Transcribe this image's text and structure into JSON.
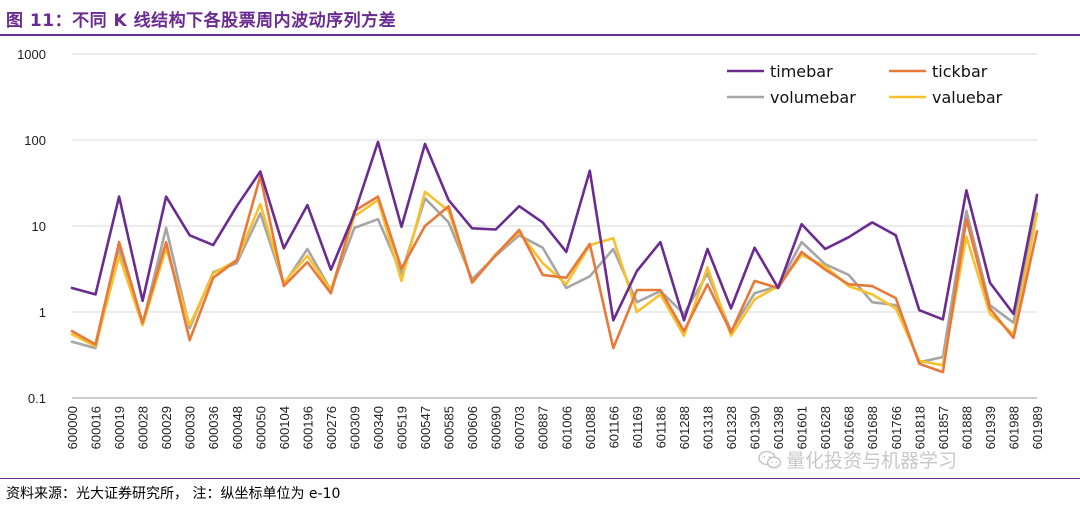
{
  "figure": {
    "title": "图 11：不同 K 线结构下各股票周内波动序列方差",
    "source": "资料来源：光大证券研究所，  注：纵坐标单位为 e-10",
    "watermark": "量化投资与机器学习"
  },
  "chart_data": {
    "type": "line",
    "title": "不同 K 线结构下各股票周内波动序列方差",
    "xlabel": "",
    "ylabel": "",
    "yscale": "log",
    "ylim": [
      0.1,
      1000
    ],
    "yticks": [
      0.1,
      1,
      10,
      100,
      1000
    ],
    "ytick_labels": [
      "0.1",
      "1",
      "10",
      "100",
      "1000"
    ],
    "legend_position": "top-right",
    "categories": [
      "600000",
      "600016",
      "600019",
      "600028",
      "600029",
      "600030",
      "600036",
      "600048",
      "600050",
      "600104",
      "600196",
      "600276",
      "600309",
      "600340",
      "600519",
      "600547",
      "600585",
      "600606",
      "600690",
      "600703",
      "600887",
      "601006",
      "601088",
      "601166",
      "601169",
      "601186",
      "601288",
      "601318",
      "601328",
      "601390",
      "601398",
      "601601",
      "601628",
      "601668",
      "601688",
      "601766",
      "601818",
      "601857",
      "601888",
      "601939",
      "601988",
      "601989"
    ],
    "series": [
      {
        "name": "timebar",
        "color": "#6B2C91",
        "values": [
          1.9,
          1.6,
          22,
          1.35,
          22,
          7.8,
          6,
          17,
          43,
          5.5,
          17.5,
          3.1,
          14,
          95,
          9.8,
          90,
          20,
          9.4,
          9.1,
          17,
          11,
          5,
          44,
          0.8,
          3,
          6.5,
          0.8,
          5.4,
          1.1,
          5.6,
          1.9,
          10.5,
          5.4,
          7.4,
          11,
          7.8,
          1.05,
          0.82,
          26,
          2.2,
          0.95,
          23
        ]
      },
      {
        "name": "tickbar",
        "color": "#E8793A",
        "values": [
          0.6,
          0.42,
          6.5,
          0.75,
          6.5,
          0.47,
          2.5,
          4,
          38,
          2,
          3.8,
          1.65,
          15,
          22,
          3.2,
          10,
          17,
          2.2,
          4.6,
          9,
          2.7,
          2.5,
          6.2,
          0.38,
          1.8,
          1.8,
          0.6,
          2.1,
          0.58,
          2.3,
          1.9,
          5,
          3.1,
          2.1,
          2,
          1.45,
          0.25,
          0.2,
          12,
          1.1,
          0.5,
          8.7
        ]
      },
      {
        "name": "volumebar",
        "color": "#A6A6A6",
        "values": [
          0.45,
          0.38,
          5.5,
          0.72,
          9.5,
          0.65,
          2.9,
          3.7,
          14,
          2.1,
          5.4,
          1.8,
          9.5,
          12,
          2.8,
          21,
          11,
          2.4,
          4.5,
          7.8,
          5.6,
          1.9,
          2.6,
          5.4,
          1.3,
          1.75,
          0.95,
          2.8,
          0.6,
          1.65,
          2,
          6.5,
          3.6,
          2.7,
          1.3,
          1.2,
          0.26,
          0.3,
          15,
          1.2,
          0.75,
          20
        ]
      },
      {
        "name": "valuebar",
        "color": "#F7C12E",
        "values": [
          0.55,
          0.4,
          4.5,
          0.7,
          5.5,
          0.7,
          2.8,
          4,
          18,
          2.2,
          4.5,
          1.8,
          13,
          20,
          2.3,
          25,
          15,
          2.2,
          4.7,
          8.5,
          3.7,
          2.1,
          6,
          7.2,
          1,
          1.6,
          0.53,
          3.3,
          0.53,
          1.4,
          2,
          4.6,
          3.4,
          2,
          1.6,
          1.1,
          0.27,
          0.24,
          7.5,
          0.95,
          0.55,
          14
        ]
      }
    ]
  }
}
